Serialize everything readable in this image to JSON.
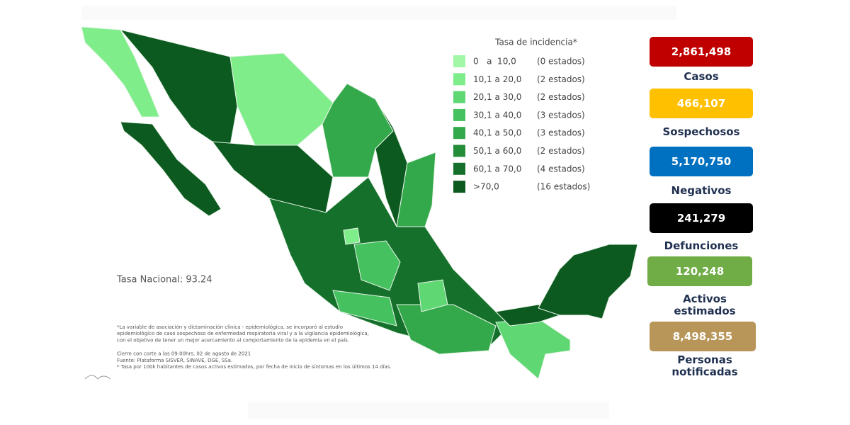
{
  "tasa_nacional": "Tasa Nacional: 93.24",
  "legend": {
    "title": "Tasa de incidencia*",
    "items": [
      {
        "range": "0   a  10,0",
        "count": "(0 estados)",
        "color": "#a1f7a6"
      },
      {
        "range": "10,1 a 20,0",
        "count": "(2 estados)",
        "color": "#7eed8a"
      },
      {
        "range": "20,1 a 30,0",
        "count": "(2 estados)",
        "color": "#5fd772"
      },
      {
        "range": "30,1 a 40,0",
        "count": "(3 estados)",
        "color": "#46c160"
      },
      {
        "range": "40,1 a 50,0",
        "count": "(3 estados)",
        "color": "#34a94b"
      },
      {
        "range": "50,1 a 60,0",
        "count": "(2 estados)",
        "color": "#238d3a"
      },
      {
        "range": "60,1 a 70,0",
        "count": "(4 estados)",
        "color": "#15702b"
      },
      {
        "range": ">70,0",
        "count": "(16 estados)",
        "color": "#0c5a20"
      }
    ]
  },
  "footnotes": [
    "*La variable de asociación y dictaminación clínica - epidemiológica, se incorporó al estudio",
    "epidemiológico de caso sospechoso de enfermedad respiratoria viral y a la vigilancia epidemiológica,",
    "con el objetivo de tener un mejor acercamiento al comportamiento de la epidemia en el país.",
    "Cierre con corte a las 09:00hrs, 02 de agosto de 2021",
    "Fuente: Plataforma SISVER, SINAVE, DGE, SSa.",
    "* Tasa por 100k habitantes de casos activos estimados, por fecha de inicio de síntomas en los últimos 14 días."
  ],
  "stats": [
    {
      "value": "2,861,498",
      "label": "Casos",
      "color": "#c00000"
    },
    {
      "value": "466,107",
      "label": "Sospechosos",
      "color": "#ffc000"
    },
    {
      "value": "5,170,750",
      "label": "Negativos",
      "color": "#0070c0"
    },
    {
      "value": "241,279",
      "label": "Defunciones",
      "color": "#000000"
    },
    {
      "value": "120,248",
      "label": "Activos estimados",
      "color": "#70ad47"
    },
    {
      "value": "8,498,355",
      "label": "Personas notificadas",
      "color": "#b8965a"
    }
  ]
}
